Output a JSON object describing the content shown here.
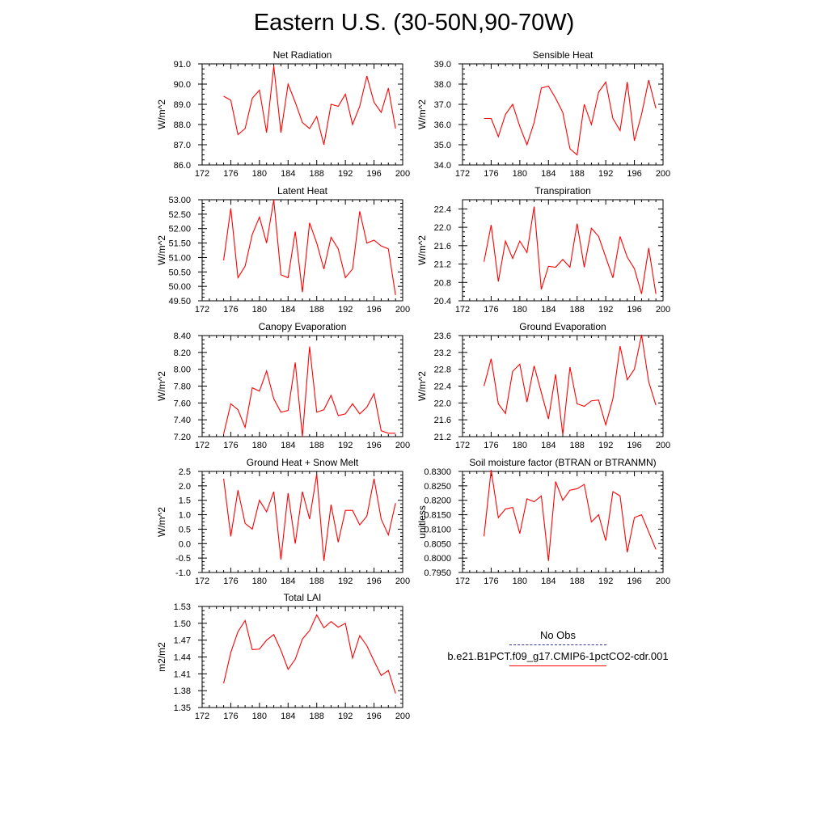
{
  "title": "Eastern U.S. (30-50N,90-70W)",
  "legend": {
    "entries": [
      {
        "label": "No Obs",
        "color": "#3030a0",
        "style": "dashed"
      },
      {
        "label": "b.e21.B1PCT.f09_g17.CMIP6-1pctCO2-cdr.001",
        "color": "#ff0000",
        "style": "solid"
      }
    ]
  },
  "chart_data": [
    {
      "type": "line",
      "title": "Net Radiation",
      "xlabel": "",
      "ylabel": "W/m^2",
      "xlim": [
        172,
        200
      ],
      "xticks": [
        172,
        176,
        180,
        184,
        188,
        192,
        196,
        200
      ],
      "ylim": [
        86.0,
        91.0
      ],
      "yticks": [
        86.0,
        87.0,
        88.0,
        89.0,
        90.0,
        91.0
      ],
      "ydec": 1,
      "x_start": 175,
      "color": "#ff0000",
      "series": [
        {
          "values": [
            89.4,
            89.2,
            87.5,
            87.8,
            89.3,
            89.7,
            87.6,
            90.9,
            87.6,
            90.0,
            89.1,
            88.1,
            87.8,
            88.4,
            87.0,
            89.0,
            88.9,
            89.5,
            88.0,
            88.9,
            90.4,
            89.1,
            88.6,
            89.8,
            87.8
          ]
        }
      ]
    },
    {
      "type": "line",
      "title": "Sensible Heat",
      "xlabel": "",
      "ylabel": "W/m^2",
      "xlim": [
        172,
        200
      ],
      "xticks": [
        172,
        176,
        180,
        184,
        188,
        192,
        196,
        200
      ],
      "ylim": [
        34.0,
        39.0
      ],
      "yticks": [
        34.0,
        35.0,
        36.0,
        37.0,
        38.0,
        39.0
      ],
      "ydec": 1,
      "x_start": 175,
      "color": "#ff0000",
      "series": [
        {
          "values": [
            36.3,
            36.3,
            35.4,
            36.5,
            37.0,
            35.9,
            35.0,
            36.1,
            37.8,
            37.9,
            37.3,
            36.6,
            34.8,
            34.5,
            37.0,
            36.0,
            37.6,
            38.1,
            36.3,
            35.7,
            38.1,
            35.2,
            36.5,
            38.2,
            36.8
          ]
        }
      ]
    },
    {
      "type": "line",
      "title": "Latent Heat",
      "xlabel": "",
      "ylabel": "W/m^2",
      "xlim": [
        172,
        200
      ],
      "xticks": [
        172,
        176,
        180,
        184,
        188,
        192,
        196,
        200
      ],
      "ylim": [
        49.5,
        53.0
      ],
      "yticks": [
        49.5,
        50.0,
        50.5,
        51.0,
        51.5,
        52.0,
        52.5,
        53.0
      ],
      "ydec": 2,
      "x_start": 175,
      "color": "#ff0000",
      "series": [
        {
          "values": [
            50.9,
            52.7,
            50.3,
            50.7,
            51.8,
            52.4,
            51.5,
            53.0,
            50.4,
            50.3,
            51.9,
            49.8,
            52.2,
            51.5,
            50.6,
            51.7,
            51.3,
            50.3,
            50.6,
            52.6,
            51.5,
            51.6,
            51.4,
            51.3,
            49.7
          ]
        }
      ]
    },
    {
      "type": "line",
      "title": "Transpiration",
      "xlabel": "",
      "ylabel": "W/m^2",
      "xlim": [
        172,
        200
      ],
      "xticks": [
        172,
        176,
        180,
        184,
        188,
        192,
        196,
        200
      ],
      "ylim": [
        20.4,
        22.6
      ],
      "yticks": [
        20.4,
        20.8,
        21.2,
        21.6,
        22.0,
        22.4
      ],
      "ydec": 1,
      "x_start": 175,
      "color": "#ff0000",
      "series": [
        {
          "values": [
            21.25,
            22.05,
            20.82,
            21.7,
            21.32,
            21.7,
            21.45,
            22.45,
            20.65,
            21.15,
            21.13,
            21.3,
            21.13,
            22.08,
            21.13,
            21.98,
            21.8,
            21.35,
            20.9,
            21.8,
            21.35,
            21.1,
            20.55,
            21.55,
            20.55
          ]
        }
      ]
    },
    {
      "type": "line",
      "title": "Canopy Evaporation",
      "xlabel": "",
      "ylabel": "W/m^2",
      "xlim": [
        172,
        200
      ],
      "xticks": [
        172,
        176,
        180,
        184,
        188,
        192,
        196,
        200
      ],
      "ylim": [
        7.2,
        8.4
      ],
      "yticks": [
        7.2,
        7.4,
        7.6,
        7.8,
        8.0,
        8.2,
        8.4
      ],
      "ydec": 2,
      "x_start": 175,
      "color": "#ff0000",
      "series": [
        {
          "values": [
            7.23,
            7.59,
            7.52,
            7.31,
            7.78,
            7.74,
            7.98,
            7.65,
            7.49,
            7.51,
            8.08,
            7.2,
            8.27,
            7.49,
            7.52,
            7.69,
            7.45,
            7.47,
            7.59,
            7.47,
            7.55,
            7.71,
            7.27,
            7.24,
            7.24
          ]
        }
      ]
    },
    {
      "type": "line",
      "title": "Ground Evaporation",
      "xlabel": "",
      "ylabel": "W/m^2",
      "xlim": [
        172,
        200
      ],
      "xticks": [
        172,
        176,
        180,
        184,
        188,
        192,
        196,
        200
      ],
      "ylim": [
        21.2,
        23.6
      ],
      "yticks": [
        21.2,
        21.6,
        22.0,
        22.4,
        22.8,
        23.2,
        23.6
      ],
      "ydec": 1,
      "x_start": 175,
      "color": "#ff0000",
      "series": [
        {
          "values": [
            22.4,
            23.05,
            21.98,
            21.75,
            22.75,
            22.92,
            22.02,
            22.88,
            22.25,
            21.62,
            22.68,
            21.25,
            22.85,
            21.98,
            21.92,
            22.05,
            22.07,
            21.48,
            22.1,
            23.35,
            22.55,
            22.8,
            23.62,
            22.5,
            21.95
          ]
        }
      ]
    },
    {
      "type": "line",
      "title": "Ground Heat + Snow Melt",
      "xlabel": "",
      "ylabel": "W/m^2",
      "xlim": [
        172,
        200
      ],
      "xticks": [
        172,
        176,
        180,
        184,
        188,
        192,
        196,
        200
      ],
      "ylim": [
        -1.0,
        2.5
      ],
      "yticks": [
        -1.0,
        -0.5,
        0.0,
        0.5,
        1.0,
        1.5,
        2.0,
        2.5
      ],
      "ydec": 1,
      "x_start": 175,
      "color": "#ff0000",
      "series": [
        {
          "values": [
            2.25,
            0.25,
            1.85,
            0.7,
            0.5,
            1.5,
            1.1,
            1.8,
            -0.55,
            1.75,
            0.0,
            1.8,
            0.85,
            2.4,
            -0.6,
            1.35,
            0.05,
            1.15,
            1.15,
            0.65,
            0.95,
            2.25,
            0.85,
            0.3,
            1.4
          ]
        }
      ]
    },
    {
      "type": "line",
      "title": "Soil moisture factor (BTRAN or BTRANMN)",
      "xlabel": "",
      "ylabel": "unitless",
      "xlim": [
        172,
        200
      ],
      "xticks": [
        172,
        176,
        180,
        184,
        188,
        192,
        196,
        200
      ],
      "ylim": [
        0.795,
        0.83
      ],
      "yticks": [
        0.795,
        0.8,
        0.805,
        0.81,
        0.815,
        0.82,
        0.825,
        0.83
      ],
      "ydec": 4,
      "x_start": 175,
      "color": "#ff0000",
      "series": [
        {
          "values": [
            0.8075,
            0.8305,
            0.814,
            0.817,
            0.8175,
            0.8085,
            0.8205,
            0.8195,
            0.8215,
            0.799,
            0.8265,
            0.82,
            0.8235,
            0.824,
            0.8255,
            0.8125,
            0.815,
            0.806,
            0.823,
            0.8215,
            0.802,
            0.814,
            0.815,
            0.809,
            0.803
          ]
        }
      ]
    },
    {
      "type": "line",
      "title": "Total LAI",
      "xlabel": "",
      "ylabel": "m2/m2",
      "xlim": [
        172,
        200
      ],
      "xticks": [
        172,
        176,
        180,
        184,
        188,
        192,
        196,
        200
      ],
      "ylim": [
        1.35,
        1.53
      ],
      "yticks": [
        1.35,
        1.38,
        1.41,
        1.44,
        1.47,
        1.5,
        1.53
      ],
      "ydec": 2,
      "x_start": 175,
      "color": "#ff0000",
      "series": [
        {
          "values": [
            1.393,
            1.448,
            1.485,
            1.505,
            1.453,
            1.454,
            1.47,
            1.48,
            1.452,
            1.418,
            1.436,
            1.472,
            1.487,
            1.515,
            1.492,
            1.503,
            1.493,
            1.5,
            1.438,
            1.478,
            1.46,
            1.433,
            1.407,
            1.416,
            1.375
          ]
        }
      ]
    }
  ]
}
